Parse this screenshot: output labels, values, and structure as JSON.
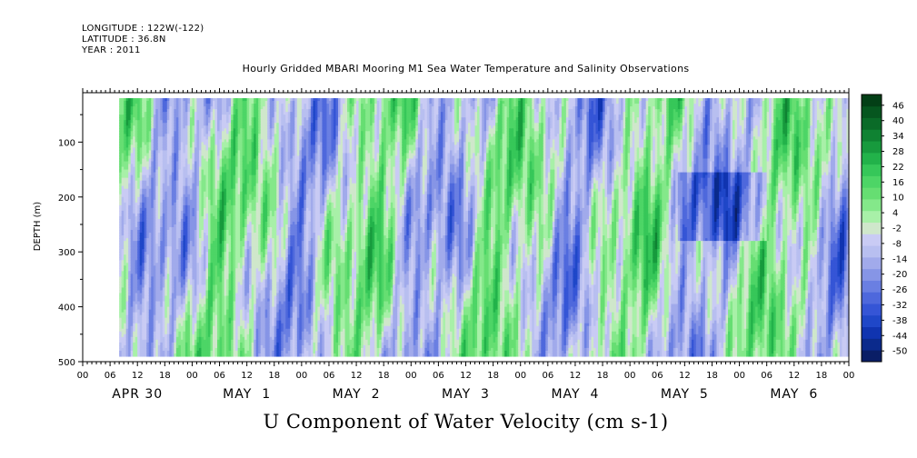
{
  "header": {
    "longitude": "LONGITUDE : 122W(-122)",
    "latitude": "LATITUDE : 36.8N",
    "year": "YEAR : 2011"
  },
  "title": "Hourly Gridded MBARI Mooring M1 Sea Water Temperature and Salinity Observations",
  "colors": {
    "frame": "#000000",
    "missing": "#ffffff"
  },
  "chart_data": {
    "type": "heatmap",
    "title": "Hourly Gridded MBARI Mooring M1 Sea Water Temperature and Salinity Observations",
    "xlabel": "U Component of Water Velocity (cm s-1)",
    "ylabel": "DEPTH (m)",
    "y_ticks": [
      100,
      200,
      300,
      400,
      500
    ],
    "ylim": [
      500,
      10
    ],
    "y_inverted": true,
    "x_hour_ticks": [
      "00",
      "06",
      "12",
      "18",
      "00",
      "06",
      "12",
      "18",
      "00",
      "06",
      "12",
      "18",
      "00",
      "06",
      "12",
      "18",
      "00",
      "06",
      "12",
      "18",
      "00",
      "06",
      "12",
      "18",
      "00",
      "06",
      "12",
      "18",
      "00"
    ],
    "x_day_labels": [
      "APR 30",
      "MAY  1",
      "MAY  2",
      "MAY  3",
      "MAY  4",
      "MAY  5",
      "MAY  6"
    ],
    "x_hours_total": 168,
    "data_hour_start": 8,
    "data_hour_end": 168,
    "data_depth_top": 20,
    "data_depth_bottom": 490,
    "colorbar": {
      "labels": [
        "46",
        "40",
        "34",
        "28",
        "22",
        "16",
        "10",
        "4",
        "-2",
        "-8",
        "-14",
        "-20",
        "-26",
        "-32",
        "-38",
        "-44",
        "-50"
      ],
      "range": [
        -50,
        50
      ],
      "colors": [
        "#0a1e66",
        "#0b2a8c",
        "#1034b0",
        "#1f47c8",
        "#3555d6",
        "#4e68dc",
        "#6a7fe2",
        "#8695e6",
        "#a1aaeb",
        "#b8bff0",
        "#c9cbf4",
        "#cfe7cb",
        "#a8f0a8",
        "#84e88a",
        "#66de72",
        "#4dd566",
        "#36c759",
        "#22b24a",
        "#179a3d",
        "#0f8232",
        "#0a6b28",
        "#06561f",
        "#033f16"
      ]
    }
  }
}
